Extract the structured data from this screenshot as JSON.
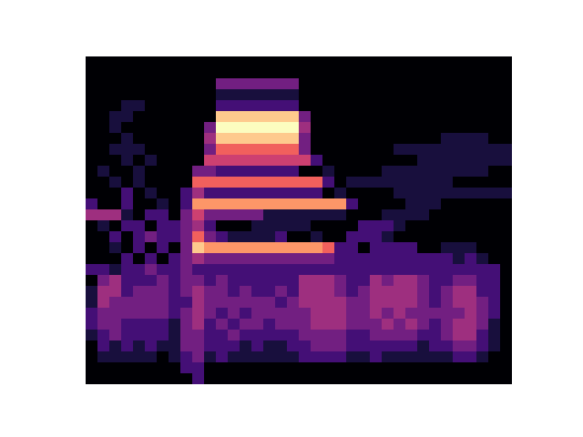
{
  "chart_data": {
    "type": "heatmap",
    "color": "magma",
    "tick_labels": false,
    "z": [
      [
        0,
        0,
        0,
        0,
        0,
        0,
        0,
        0,
        0,
        0,
        0,
        0,
        0,
        0,
        0,
        0,
        0,
        0,
        0,
        0,
        0,
        0,
        0,
        0,
        0,
        0,
        0,
        0,
        0,
        0,
        0,
        0,
        0,
        0,
        0,
        0
      ],
      [
        0,
        0,
        0,
        0,
        0,
        0,
        0,
        0,
        0,
        0,
        0,
        0,
        0,
        0,
        0,
        0,
        0,
        0,
        0,
        0,
        0,
        0,
        0,
        0,
        0,
        0,
        0,
        0,
        0,
        0,
        0,
        0,
        0,
        0,
        0,
        0
      ],
      [
        0,
        0,
        0,
        0,
        0,
        0,
        0,
        0,
        0,
        0,
        0,
        3,
        3,
        3,
        3,
        3,
        3,
        3,
        0,
        0,
        0,
        0,
        0,
        0,
        0,
        0,
        0,
        0,
        0,
        0,
        0,
        0,
        0,
        0,
        0,
        0
      ],
      [
        0,
        0,
        0,
        0,
        0,
        0,
        0,
        0,
        0,
        0,
        0,
        1,
        1,
        1,
        1,
        1,
        1,
        1,
        0,
        0,
        0,
        0,
        0,
        0,
        0,
        0,
        0,
        0,
        0,
        0,
        0,
        0,
        0,
        0,
        0,
        0
      ],
      [
        0,
        0,
        0,
        1,
        1,
        0,
        0,
        0,
        0,
        0,
        0,
        2,
        2,
        2,
        2,
        2,
        2,
        2,
        0,
        0,
        0,
        0,
        0,
        0,
        0,
        0,
        0,
        0,
        0,
        0,
        0,
        0,
        0,
        0,
        0,
        0
      ],
      [
        0,
        0,
        1,
        1,
        0,
        0,
        0,
        0,
        0,
        0,
        0,
        8,
        8,
        8,
        8,
        8,
        8,
        8,
        3,
        0,
        0,
        0,
        0,
        0,
        0,
        0,
        0,
        0,
        0,
        0,
        0,
        0,
        0,
        0,
        0,
        0
      ],
      [
        0,
        0,
        1,
        0,
        0,
        0,
        0,
        0,
        0,
        0,
        3,
        9,
        9,
        9,
        9,
        9,
        9,
        9,
        4,
        0,
        0,
        0,
        0,
        0,
        0,
        0,
        0,
        0,
        0,
        0,
        0,
        0,
        0,
        0,
        0,
        0
      ],
      [
        0,
        0,
        0,
        1,
        0,
        0,
        0,
        0,
        0,
        0,
        4,
        8,
        8,
        8,
        8,
        8,
        8,
        8,
        3,
        0,
        0,
        0,
        0,
        0,
        0,
        0,
        0,
        0,
        0,
        0,
        1,
        1,
        1,
        1,
        0,
        0
      ],
      [
        0,
        0,
        1,
        1,
        1,
        0,
        0,
        0,
        0,
        0,
        3,
        6,
        6,
        6,
        6,
        6,
        6,
        6,
        3,
        0,
        0,
        0,
        0,
        0,
        0,
        0,
        1,
        1,
        1,
        1,
        1,
        1,
        1,
        1,
        1,
        1
      ],
      [
        0,
        0,
        0,
        1,
        0,
        1,
        0,
        0,
        0,
        0,
        5,
        5,
        5,
        5,
        5,
        5,
        5,
        5,
        5,
        2,
        0,
        0,
        0,
        0,
        0,
        0,
        0,
        0,
        1,
        1,
        1,
        1,
        1,
        1,
        1,
        1
      ],
      [
        0,
        1,
        0,
        0,
        1,
        0,
        0,
        0,
        0,
        3,
        3,
        2,
        2,
        2,
        2,
        2,
        2,
        2,
        0,
        0,
        1,
        0,
        0,
        0,
        0,
        1,
        1,
        1,
        1,
        1,
        1,
        1,
        1,
        1,
        0,
        0
      ],
      [
        0,
        0,
        1,
        0,
        1,
        0,
        0,
        0,
        0,
        6,
        6,
        6,
        6,
        6,
        6,
        6,
        6,
        6,
        6,
        6,
        2,
        0,
        1,
        1,
        1,
        1,
        1,
        1,
        1,
        1,
        1,
        0,
        0,
        0,
        0,
        0
      ],
      [
        0,
        0,
        0,
        2,
        0,
        1,
        0,
        0,
        2,
        4,
        2,
        2,
        2,
        2,
        2,
        2,
        2,
        2,
        2,
        2,
        0,
        1,
        0,
        0,
        0,
        0,
        1,
        1,
        1,
        1,
        1,
        1,
        1,
        1,
        1,
        1
      ],
      [
        2,
        0,
        0,
        2,
        0,
        0,
        1,
        0,
        2,
        7,
        7,
        7,
        7,
        7,
        7,
        7,
        7,
        7,
        7,
        7,
        7,
        7,
        2,
        0,
        0,
        0,
        0,
        1,
        1,
        1,
        0,
        0,
        0,
        0,
        0,
        0
      ],
      [
        4,
        4,
        4,
        1,
        0,
        2,
        2,
        0,
        3,
        5,
        3,
        3,
        3,
        3,
        3,
        1,
        1,
        1,
        1,
        1,
        1,
        1,
        0,
        0,
        0,
        1,
        1,
        1,
        1,
        0,
        0,
        0,
        0,
        0,
        0,
        0
      ],
      [
        0,
        1,
        0,
        2,
        2,
        0,
        2,
        2,
        3,
        4,
        2,
        0,
        0,
        0,
        1,
        1,
        1,
        1,
        1,
        0,
        0,
        0,
        0,
        2,
        2,
        2,
        1,
        0,
        0,
        0,
        0,
        0,
        0,
        0,
        0,
        0
      ],
      [
        0,
        0,
        2,
        0,
        2,
        3,
        2,
        2,
        3,
        6,
        3,
        2,
        1,
        1,
        1,
        1,
        2,
        0,
        0,
        1,
        0,
        0,
        2,
        2,
        2,
        1,
        0,
        0,
        0,
        0,
        0,
        0,
        0,
        0,
        0,
        0
      ],
      [
        0,
        0,
        1,
        0,
        2,
        0,
        2,
        0,
        3,
        8,
        7,
        7,
        7,
        7,
        7,
        7,
        7,
        7,
        7,
        7,
        6,
        2,
        2,
        0,
        2,
        2,
        2,
        2,
        0,
        0,
        1,
        1,
        1,
        0,
        0,
        0
      ],
      [
        0,
        0,
        0,
        2,
        0,
        2,
        0,
        2,
        3,
        4,
        3,
        3,
        3,
        3,
        3,
        3,
        3,
        3,
        3,
        3,
        3,
        2,
        2,
        2,
        2,
        2,
        2,
        2,
        2,
        2,
        2,
        1,
        2,
        1,
        0,
        0
      ],
      [
        2,
        2,
        1,
        2,
        2,
        3,
        2,
        2,
        3,
        2,
        2,
        2,
        2,
        2,
        2,
        2,
        2,
        2,
        2,
        2,
        2,
        2,
        2,
        2,
        2,
        2,
        2,
        2,
        2,
        2,
        2,
        2,
        2,
        2,
        2,
        0
      ],
      [
        0,
        3,
        4,
        2,
        2,
        2,
        3,
        2,
        3,
        3,
        2,
        3,
        2,
        2,
        2,
        2,
        2,
        2,
        4,
        4,
        4,
        3,
        2,
        2,
        4,
        3,
        4,
        4,
        3,
        2,
        2,
        3,
        3,
        2,
        2,
        0
      ],
      [
        1,
        4,
        4,
        2,
        3,
        3,
        3,
        2,
        3,
        4,
        3,
        3,
        2,
        3,
        2,
        2,
        3,
        2,
        4,
        4,
        4,
        3,
        2,
        3,
        4,
        4,
        4,
        4,
        3,
        2,
        3,
        4,
        4,
        2,
        2,
        0
      ],
      [
        1,
        4,
        3,
        3,
        3,
        3,
        3,
        2,
        2,
        4,
        3,
        3,
        3,
        3,
        3,
        3,
        2,
        3,
        4,
        4,
        4,
        4,
        3,
        3,
        4,
        4,
        4,
        4,
        3,
        2,
        3,
        4,
        4,
        3,
        2,
        0
      ],
      [
        2,
        3,
        3,
        3,
        3,
        3,
        3,
        2,
        3,
        4,
        3,
        2,
        3,
        2,
        3,
        3,
        3,
        3,
        3,
        4,
        4,
        4,
        3,
        3,
        4,
        3,
        4,
        3,
        3,
        3,
        3,
        3,
        4,
        3,
        2,
        0
      ],
      [
        2,
        3,
        3,
        2,
        2,
        2,
        2,
        1,
        3,
        4,
        2,
        3,
        2,
        3,
        3,
        2,
        3,
        3,
        3,
        4,
        4,
        4,
        3,
        3,
        3,
        4,
        3,
        4,
        3,
        2,
        3,
        4,
        4,
        3,
        1,
        0
      ],
      [
        1,
        2,
        3,
        2,
        2,
        2,
        2,
        1,
        3,
        3,
        2,
        2,
        3,
        2,
        2,
        2,
        2,
        2,
        3,
        3,
        3,
        3,
        2,
        2,
        3,
        3,
        3,
        3,
        2,
        2,
        3,
        4,
        4,
        2,
        1,
        0
      ],
      [
        0,
        2,
        1,
        2,
        1,
        2,
        1,
        1,
        3,
        3,
        2,
        2,
        2,
        1,
        2,
        1,
        1,
        2,
        2,
        3,
        3,
        3,
        2,
        2,
        2,
        2,
        2,
        2,
        1,
        2,
        2,
        3,
        3,
        2,
        1,
        0
      ],
      [
        0,
        1,
        1,
        1,
        1,
        1,
        0,
        1,
        2,
        3,
        1,
        2,
        1,
        1,
        1,
        1,
        1,
        1,
        2,
        2,
        2,
        2,
        1,
        1,
        2,
        1,
        1,
        1,
        1,
        1,
        1,
        2,
        2,
        1,
        0,
        0
      ],
      [
        0,
        0,
        0,
        0,
        0,
        0,
        0,
        0,
        2,
        2,
        0,
        0,
        0,
        0,
        0,
        0,
        0,
        0,
        0,
        0,
        0,
        0,
        0,
        0,
        0,
        0,
        0,
        0,
        0,
        0,
        0,
        0,
        0,
        0,
        0,
        0
      ],
      [
        0,
        0,
        0,
        0,
        0,
        0,
        0,
        0,
        0,
        2,
        0,
        0,
        0,
        0,
        0,
        0,
        0,
        0,
        0,
        0,
        0,
        0,
        0,
        0,
        0,
        0,
        0,
        0,
        0,
        0,
        0,
        0,
        0,
        0,
        0,
        0
      ]
    ]
  }
}
